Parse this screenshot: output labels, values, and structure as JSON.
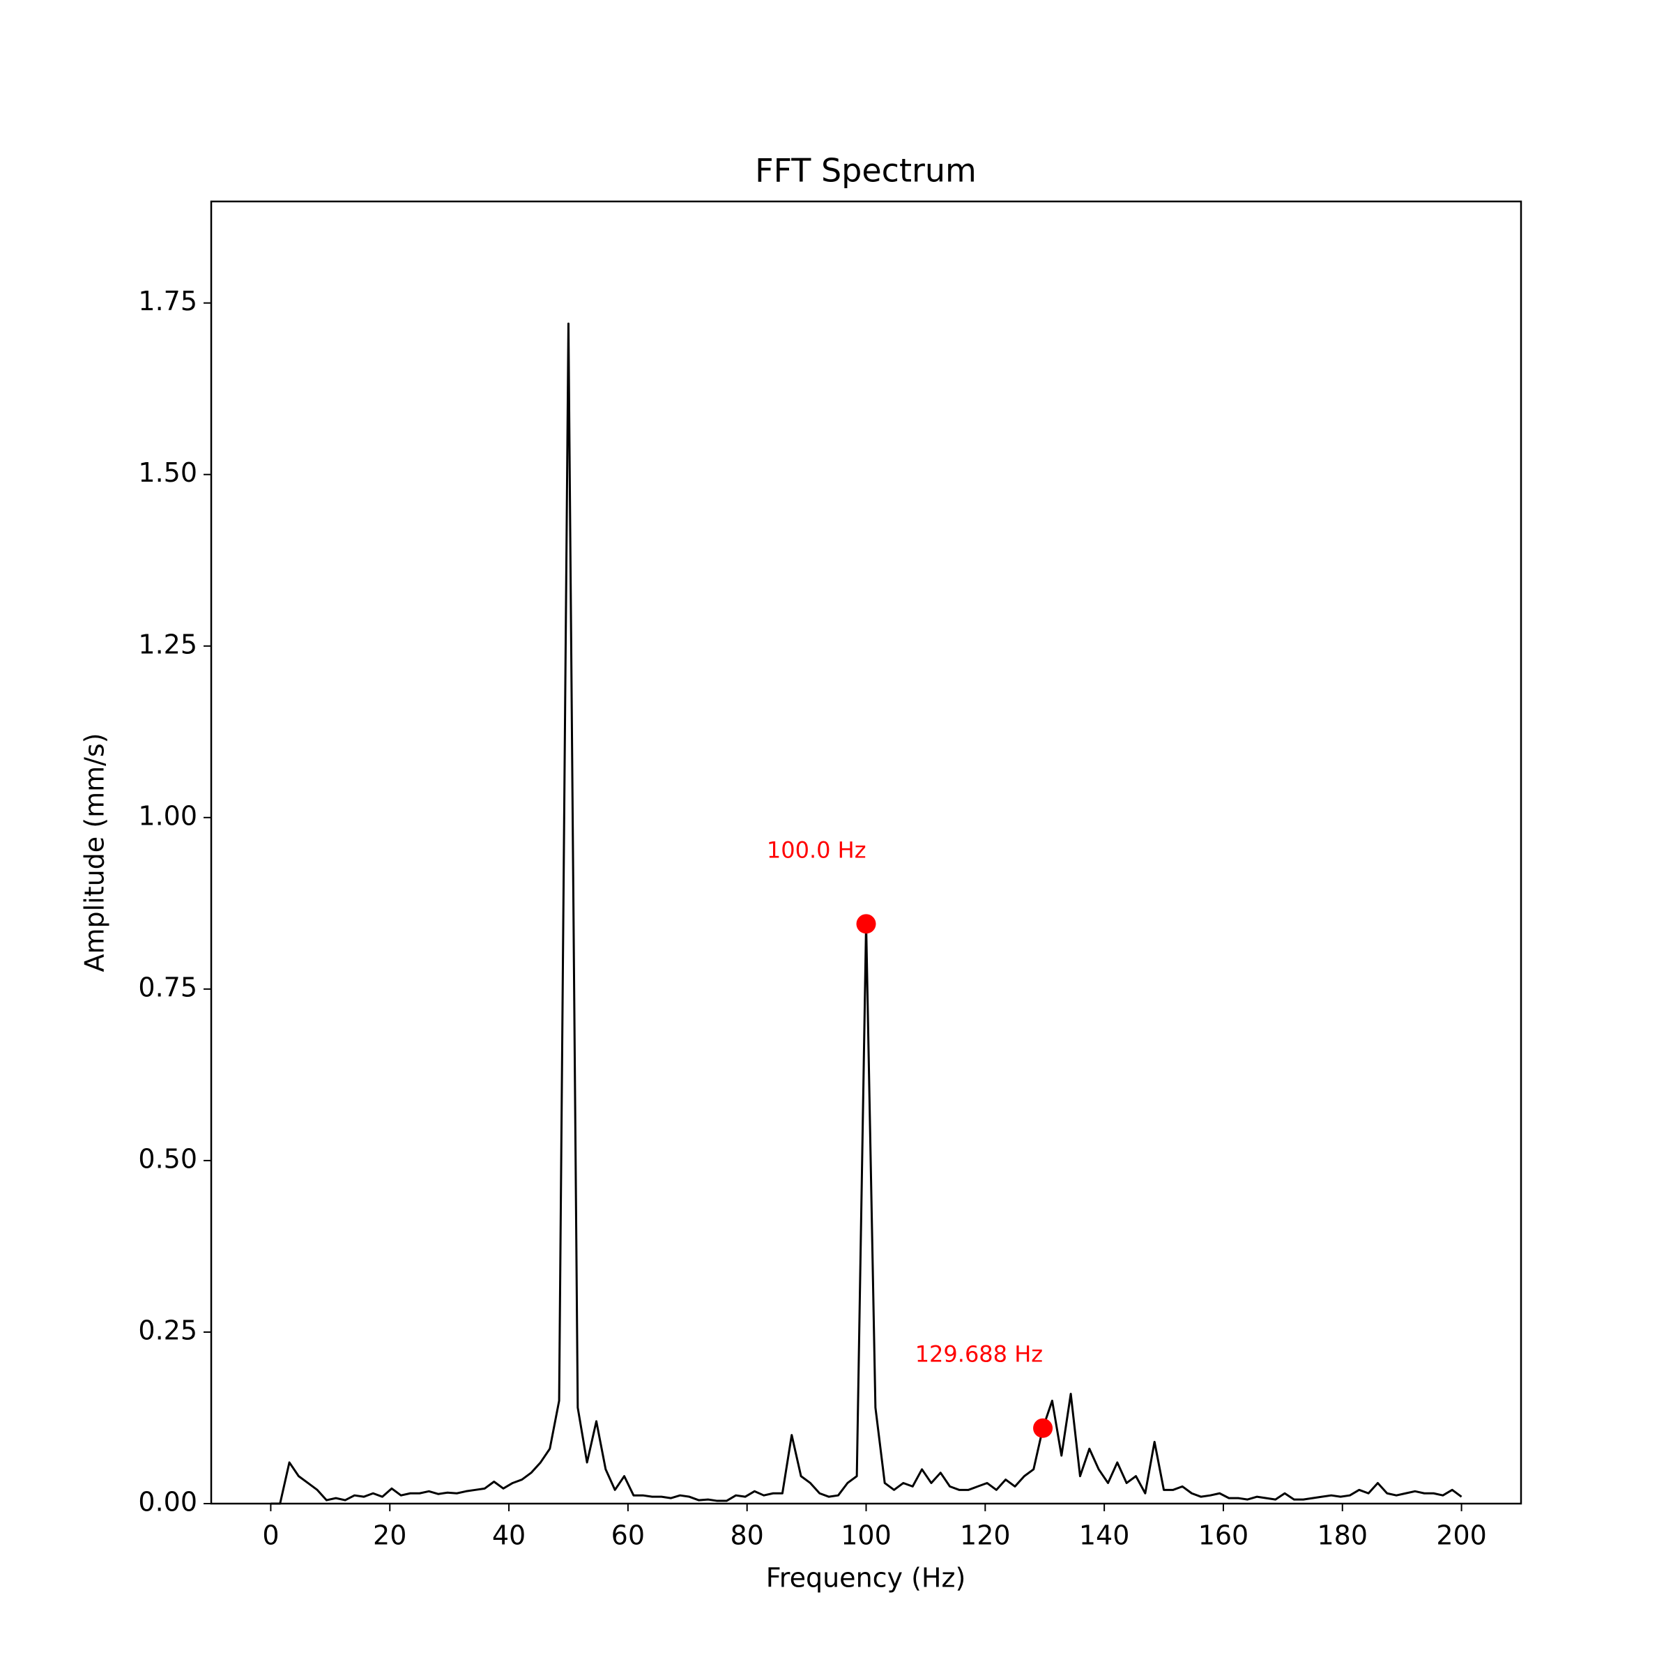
{
  "chart_data": {
    "type": "line",
    "title": "FFT Spectrum",
    "x_label": "Frequency (Hz)",
    "y_label": "Amplitude (mm/s)",
    "xlim": [
      -10,
      210
    ],
    "ylim": [
      0,
      1.898
    ],
    "xticks": [
      0,
      20,
      40,
      60,
      80,
      100,
      120,
      140,
      160,
      180,
      200
    ],
    "yticks": [
      {
        "value": 0,
        "label": "0.00"
      },
      0.25,
      {
        "value": 0.5,
        "label": "0.50"
      },
      0.75,
      {
        "value": 1,
        "label": "1.00"
      },
      1.25,
      {
        "value": 1.5,
        "label": "1.50"
      },
      1.75
    ],
    "grid": false,
    "x": [
      0,
      1.5625,
      3.125,
      4.6875,
      6.25,
      7.8125,
      9.375,
      10.9375,
      12.5,
      14.0625,
      15.625,
      17.1875,
      18.75,
      20.3125,
      21.875,
      23.4375,
      25,
      26.5625,
      28.125,
      29.6875,
      31.25,
      32.8125,
      34.375,
      35.9375,
      37.5,
      39.0625,
      40.625,
      42.1875,
      43.75,
      45.3125,
      46.875,
      48.4375,
      50,
      51.5625,
      53.125,
      54.6875,
      56.25,
      57.8125,
      59.375,
      60.9375,
      62.5,
      64.0625,
      65.625,
      67.1875,
      68.75,
      70.3125,
      71.875,
      73.4375,
      75,
      76.5625,
      78.125,
      79.6875,
      81.25,
      82.8125,
      84.375,
      85.9375,
      87.5,
      89.0625,
      90.625,
      92.1875,
      93.75,
      95.3125,
      96.875,
      98.4375,
      100,
      101.5625,
      103.125,
      104.6875,
      106.25,
      107.8125,
      109.375,
      110.9375,
      112.5,
      114.0625,
      115.625,
      117.1875,
      118.75,
      120.3125,
      121.875,
      123.4375,
      125,
      126.5625,
      128.125,
      129.6875,
      131.25,
      132.8125,
      134.375,
      135.9375,
      137.5,
      139.0625,
      140.625,
      142.1875,
      143.75,
      145.3125,
      146.875,
      148.4375,
      150,
      151.5625,
      153.125,
      154.6875,
      156.25,
      157.8125,
      159.375,
      160.9375,
      162.5,
      164.0625,
      165.625,
      167.1875,
      168.75,
      170.3125,
      171.875,
      173.4375,
      175,
      176.5625,
      178.125,
      179.6875,
      181.25,
      182.8125,
      184.375,
      185.9375,
      187.5,
      189.0625,
      190.625,
      192.1875,
      193.75,
      195.3125,
      196.875,
      198.4375,
      200
    ],
    "series": [
      {
        "color": "#000000",
        "values": [
          0,
          0,
          0.06,
          0.04,
          0.03,
          0.02,
          0.005,
          0.008,
          0.005,
          0.012,
          0.01,
          0.015,
          0.01,
          0.022,
          0.012,
          0.015,
          0.015,
          0.018,
          0.014,
          0.016,
          0.015,
          0.018,
          0.02,
          0.022,
          0.032,
          0.022,
          0.03,
          0.035,
          0.045,
          0.06,
          0.08,
          0.15,
          1.72,
          0.14,
          0.06,
          0.12,
          0.05,
          0.02,
          0.04,
          0.012,
          0.012,
          0.01,
          0.01,
          0.008,
          0.012,
          0.01,
          0.005,
          0.006,
          0.004,
          0.004,
          0.012,
          0.01,
          0.018,
          0.012,
          0.015,
          0.015,
          0.1,
          0.04,
          0.03,
          0.015,
          0.01,
          0.012,
          0.03,
          0.04,
          0.845,
          0.14,
          0.03,
          0.02,
          0.03,
          0.025,
          0.05,
          0.03,
          0.045,
          0.025,
          0.02,
          0.02,
          0.025,
          0.03,
          0.02,
          0.035,
          0.025,
          0.04,
          0.05,
          0.11,
          0.15,
          0.07,
          0.16,
          0.04,
          0.08,
          0.05,
          0.03,
          0.06,
          0.03,
          0.04,
          0.015,
          0.09,
          0.02,
          0.02,
          0.025,
          0.015,
          0.01,
          0.012,
          0.015,
          0.008,
          0.008,
          0.006,
          0.01,
          0.008,
          0.006,
          0.015,
          0.006,
          0.006,
          0.008,
          0.01,
          0.012,
          0.01,
          0.012,
          0.02,
          0.015,
          0.03,
          0.015,
          0.012,
          0.015,
          0.018,
          0.015,
          0.015,
          0.012,
          0.02,
          0.01
        ]
      }
    ],
    "annotations": [
      {
        "x": 100,
        "y": 0.845,
        "label": "100.0 Hz",
        "color": "#ff0000"
      },
      {
        "x": 129.6875,
        "y": 0.11,
        "label": "129.688 Hz",
        "color": "#ff0000"
      }
    ]
  }
}
